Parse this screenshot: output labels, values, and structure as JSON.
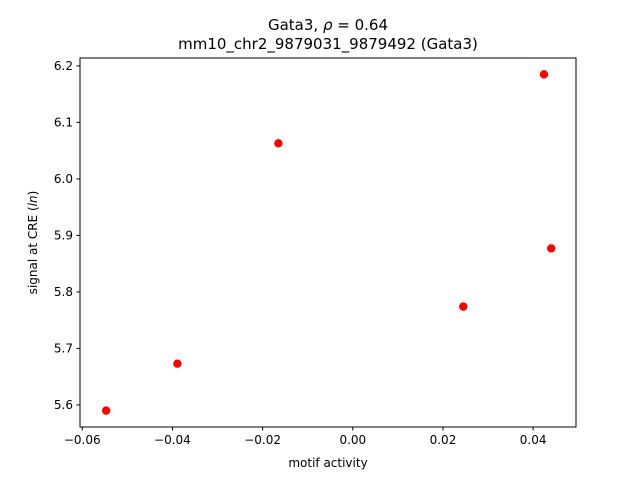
{
  "chart_data": {
    "type": "scatter",
    "title_line1_prefix": "Gata3, ",
    "title_line1_symbol": "ρ",
    "title_line1_suffix": " = 0.64",
    "title_line2": "mm10_chr2_9879031_9879492 (Gata3)",
    "xlabel": "motif activity",
    "ylabel_prefix": "signal at CRE (",
    "ylabel_italic": "ln",
    "ylabel_suffix": ")",
    "xlim": [
      -0.0605,
      0.0495
    ],
    "ylim": [
      5.561,
      6.214
    ],
    "xticks": [
      -0.06,
      -0.04,
      -0.02,
      0.0,
      0.02,
      0.04
    ],
    "xtick_labels": [
      "−0.06",
      "−0.04",
      "−0.02",
      "0.00",
      "0.02",
      "0.04"
    ],
    "yticks": [
      5.6,
      5.7,
      5.8,
      5.9,
      6.0,
      6.1,
      6.2
    ],
    "ytick_labels": [
      "5.6",
      "5.7",
      "5.8",
      "5.9",
      "6.0",
      "6.1",
      "6.2"
    ],
    "grid": false,
    "marker_color": "#ff0000",
    "points": [
      {
        "x": -0.0547,
        "y": 5.59
      },
      {
        "x": -0.0389,
        "y": 5.673
      },
      {
        "x": -0.0165,
        "y": 6.063
      },
      {
        "x": 0.0245,
        "y": 5.774
      },
      {
        "x": 0.0424,
        "y": 6.185
      },
      {
        "x": 0.044,
        "y": 5.877
      }
    ]
  }
}
